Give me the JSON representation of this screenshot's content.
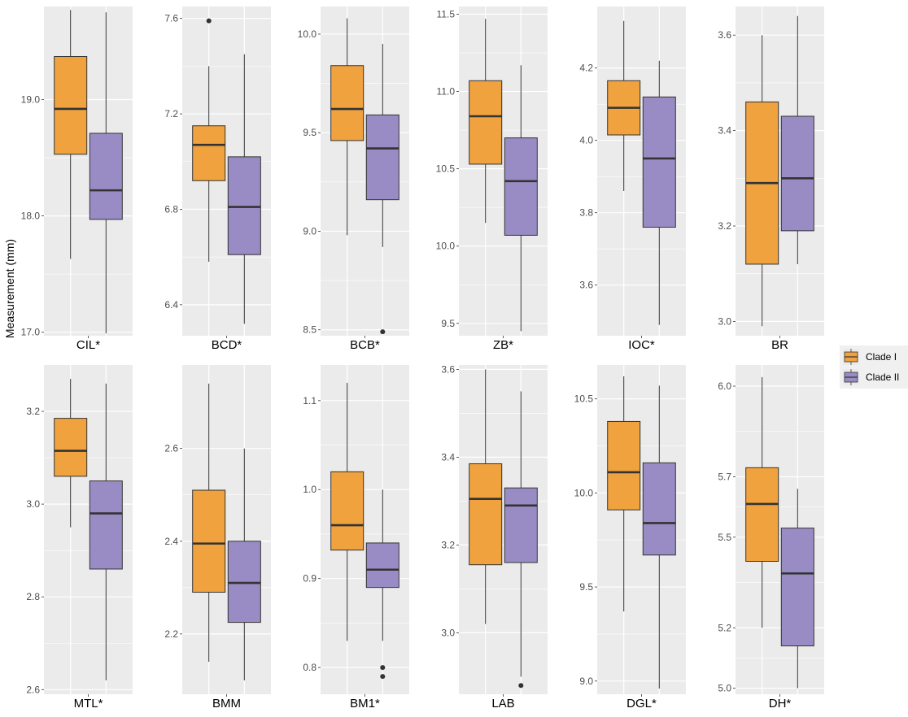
{
  "chart_data": {
    "type": "boxplot",
    "ylabel": "Measurement (mm)",
    "legend": {
      "placement": "right",
      "entries": [
        {
          "name": "Clade I",
          "color": "#F0A23E"
        },
        {
          "name": "Clade II",
          "color": "#998CC4"
        }
      ]
    },
    "panels": [
      {
        "label": "CIL*",
        "ylim": [
          16.97,
          19.8
        ],
        "ticks": [
          17.0,
          18.0,
          19.0
        ],
        "tick_labels": [
          "17.0",
          "18.0",
          "19.0"
        ],
        "groups": [
          {
            "name": "Clade I",
            "min": 17.63,
            "q1": 18.53,
            "median": 18.92,
            "q3": 19.37,
            "max": 19.77,
            "outliers": []
          },
          {
            "name": "Clade II",
            "min": 16.99,
            "q1": 17.97,
            "median": 18.22,
            "q3": 18.71,
            "max": 19.75,
            "outliers": []
          }
        ]
      },
      {
        "label": "BCD*",
        "ylim": [
          6.27,
          7.65
        ],
        "ticks": [
          6.4,
          6.8,
          7.2,
          7.6
        ],
        "tick_labels": [
          "6.4",
          "6.8",
          "7.2",
          "7.6"
        ],
        "groups": [
          {
            "name": "Clade I",
            "min": 6.58,
            "q1": 6.92,
            "median": 7.07,
            "q3": 7.15,
            "max": 7.4,
            "outliers": [
              7.59
            ]
          },
          {
            "name": "Clade II",
            "min": 6.32,
            "q1": 6.61,
            "median": 6.81,
            "q3": 7.02,
            "max": 7.45,
            "outliers": []
          }
        ]
      },
      {
        "label": "BCB*",
        "ylim": [
          8.47,
          10.14
        ],
        "ticks": [
          8.5,
          9.0,
          9.5,
          10.0
        ],
        "tick_labels": [
          "8.5",
          "9.0",
          "9.5",
          "10.0"
        ],
        "groups": [
          {
            "name": "Clade I",
            "min": 8.98,
            "q1": 9.46,
            "median": 9.62,
            "q3": 9.84,
            "max": 10.08,
            "outliers": []
          },
          {
            "name": "Clade II",
            "min": 8.92,
            "q1": 9.16,
            "median": 9.42,
            "q3": 9.59,
            "max": 9.95,
            "outliers": [
              8.49
            ]
          }
        ]
      },
      {
        "label": "ZB*",
        "ylim": [
          9.42,
          11.55
        ],
        "ticks": [
          9.5,
          10.0,
          10.5,
          11.0,
          11.5
        ],
        "tick_labels": [
          "9.5",
          "10.0",
          "10.5",
          "11.0",
          "11.5"
        ],
        "groups": [
          {
            "name": "Clade I",
            "min": 10.15,
            "q1": 10.53,
            "median": 10.84,
            "q3": 11.07,
            "max": 11.47,
            "outliers": []
          },
          {
            "name": "Clade II",
            "min": 9.45,
            "q1": 10.07,
            "median": 10.42,
            "q3": 10.7,
            "max": 11.17,
            "outliers": []
          }
        ]
      },
      {
        "label": "IOC*",
        "ylim": [
          3.46,
          4.37
        ],
        "ticks": [
          3.6,
          3.8,
          4.0,
          4.2
        ],
        "tick_labels": [
          "3.6",
          "3.8",
          "4.0",
          "4.2"
        ],
        "groups": [
          {
            "name": "Clade I",
            "min": 3.86,
            "q1": 4.015,
            "median": 4.09,
            "q3": 4.165,
            "max": 4.33,
            "outliers": []
          },
          {
            "name": "Clade II",
            "min": 3.49,
            "q1": 3.76,
            "median": 3.95,
            "q3": 4.12,
            "max": 4.22,
            "outliers": []
          }
        ]
      },
      {
        "label": "BR",
        "ylim": [
          2.97,
          3.66
        ],
        "ticks": [
          3.0,
          3.2,
          3.4,
          3.6
        ],
        "tick_labels": [
          "3.0",
          "3.2",
          "3.4",
          "3.6"
        ],
        "groups": [
          {
            "name": "Clade I",
            "min": 2.99,
            "q1": 3.12,
            "median": 3.29,
            "q3": 3.46,
            "max": 3.6,
            "outliers": []
          },
          {
            "name": "Clade II",
            "min": 3.12,
            "q1": 3.19,
            "median": 3.3,
            "q3": 3.43,
            "max": 3.64,
            "outliers": []
          }
        ]
      },
      {
        "label": "MTL*",
        "ylim": [
          2.59,
          3.3
        ],
        "ticks": [
          2.6,
          2.8,
          3.0,
          3.2
        ],
        "tick_labels": [
          "2.6",
          "2.8",
          "3.0",
          "3.2"
        ],
        "groups": [
          {
            "name": "Clade I",
            "min": 2.95,
            "q1": 3.06,
            "median": 3.115,
            "q3": 3.185,
            "max": 3.27,
            "outliers": []
          },
          {
            "name": "Clade II",
            "min": 2.62,
            "q1": 2.86,
            "median": 2.98,
            "q3": 3.05,
            "max": 3.26,
            "outliers": []
          }
        ]
      },
      {
        "label": "BMM",
        "ylim": [
          2.07,
          2.78
        ],
        "ticks": [
          2.2,
          2.4,
          2.6
        ],
        "tick_labels": [
          "2.2",
          "2.4",
          "2.6"
        ],
        "groups": [
          {
            "name": "Clade I",
            "min": 2.14,
            "q1": 2.29,
            "median": 2.395,
            "q3": 2.51,
            "max": 2.74,
            "outliers": []
          },
          {
            "name": "Clade II",
            "min": 2.1,
            "q1": 2.225,
            "median": 2.31,
            "q3": 2.4,
            "max": 2.6,
            "outliers": []
          }
        ]
      },
      {
        "label": "BM1*",
        "ylim": [
          0.77,
          1.14
        ],
        "ticks": [
          0.8,
          0.9,
          1.0,
          1.1
        ],
        "tick_labels": [
          "0.8",
          "0.9",
          "1.0",
          "1.1"
        ],
        "groups": [
          {
            "name": "Clade I",
            "min": 0.83,
            "q1": 0.932,
            "median": 0.96,
            "q3": 1.02,
            "max": 1.12,
            "outliers": []
          },
          {
            "name": "Clade II",
            "min": 0.83,
            "q1": 0.89,
            "median": 0.91,
            "q3": 0.94,
            "max": 1.0,
            "outliers": [
              0.8,
              0.79
            ]
          }
        ]
      },
      {
        "label": "LAB",
        "ylim": [
          2.86,
          3.61
        ],
        "ticks": [
          3.0,
          3.2,
          3.4,
          3.6
        ],
        "tick_labels": [
          "3.0",
          "3.2",
          "3.4",
          "3.6"
        ],
        "groups": [
          {
            "name": "Clade I",
            "min": 3.02,
            "q1": 3.155,
            "median": 3.305,
            "q3": 3.385,
            "max": 3.6,
            "outliers": []
          },
          {
            "name": "Clade II",
            "min": 2.9,
            "q1": 3.16,
            "median": 3.29,
            "q3": 3.33,
            "max": 3.55,
            "outliers": [
              2.88
            ]
          }
        ]
      },
      {
        "label": "DGL*",
        "ylim": [
          8.93,
          10.68
        ],
        "ticks": [
          9.0,
          9.5,
          10.0,
          10.5
        ],
        "tick_labels": [
          "9.0",
          "9.5",
          "10.0",
          "10.5"
        ],
        "groups": [
          {
            "name": "Clade I",
            "min": 9.37,
            "q1": 9.91,
            "median": 10.11,
            "q3": 10.38,
            "max": 10.62,
            "outliers": []
          },
          {
            "name": "Clade II",
            "min": 8.96,
            "q1": 9.67,
            "median": 9.84,
            "q3": 10.16,
            "max": 10.57,
            "outliers": []
          }
        ]
      },
      {
        "label": "DH*",
        "ylim": [
          4.98,
          6.07
        ],
        "ticks": [
          5.0,
          5.2,
          5.5,
          5.7,
          6.0
        ],
        "tick_labels": [
          "5.0",
          "5.2",
          "5.5",
          "5.7",
          "6.0"
        ],
        "groups": [
          {
            "name": "Clade I",
            "min": 5.2,
            "q1": 5.42,
            "median": 5.61,
            "q3": 5.73,
            "max": 6.03,
            "outliers": []
          },
          {
            "name": "Clade II",
            "min": 5.0,
            "q1": 5.14,
            "median": 5.38,
            "q3": 5.53,
            "max": 5.66,
            "outliers": []
          }
        ]
      }
    ]
  }
}
